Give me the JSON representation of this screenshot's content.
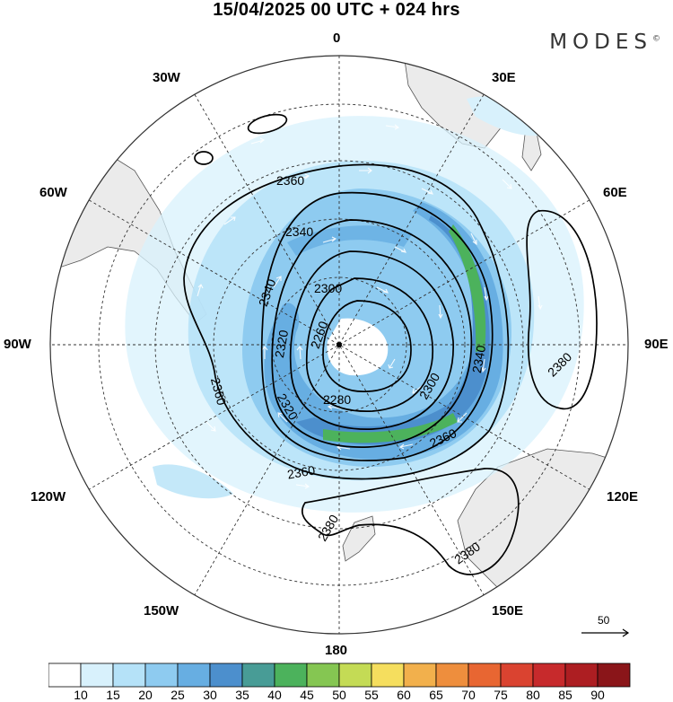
{
  "header": {
    "title": "15/04/2025  00 UTC  + 024 hrs",
    "brand": "MODES"
  },
  "map": {
    "projection": "polar stereographic (south pole)",
    "meridian_labels": {
      "deg_0": "0",
      "deg_30e": "30E",
      "deg_60e": "60E",
      "deg_90e": "90E",
      "deg_120e": "120E",
      "deg_150e": "150E",
      "deg_180": "180",
      "deg_150w": "150W",
      "deg_120w": "120W",
      "deg_90w": "90W",
      "deg_60w": "60W",
      "deg_30w": "30W"
    },
    "contour_labels": [
      "2360",
      "2340",
      "2340",
      "2300",
      "2260",
      "2320",
      "2280",
      "2300",
      "2340",
      "2380",
      "2360",
      "2320",
      "2360",
      "2360",
      "2380",
      "2380"
    ],
    "wind_reference_label": "50",
    "colors": {
      "land": "#ebebeb",
      "ocean": "#ffffff",
      "contour": "#000000"
    }
  },
  "colorbar": {
    "ticks": [
      "10",
      "15",
      "20",
      "25",
      "30",
      "35",
      "40",
      "45",
      "50",
      "55",
      "60",
      "65",
      "70",
      "75",
      "80",
      "85",
      "90"
    ],
    "colors": [
      "#ffffff",
      "#d8f1fc",
      "#b5e2f8",
      "#8ecbf0",
      "#67aee2",
      "#4c8fcd",
      "#489c96",
      "#4cb25c",
      "#85c652",
      "#c4db55",
      "#f5de5e",
      "#f2b04c",
      "#ee8e3d",
      "#e86632",
      "#da4330",
      "#c72a2c",
      "#ad1e22",
      "#8a1519"
    ]
  }
}
